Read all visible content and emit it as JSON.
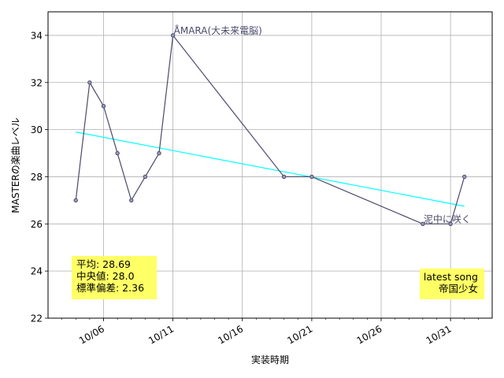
{
  "chart_data": {
    "type": "line",
    "xlabel": "実装時期",
    "ylabel": "MASTERの楽曲レベル",
    "ylim": [
      22,
      35
    ],
    "y_ticks": [
      22,
      24,
      26,
      28,
      30,
      32,
      34
    ],
    "x_range": [
      "2023-10-02",
      "2023-11-03"
    ],
    "x_ticks": [
      {
        "date": "2023-10-06",
        "label": "10/06"
      },
      {
        "date": "2023-10-11",
        "label": "10/11"
      },
      {
        "date": "2023-10-16",
        "label": "10/16"
      },
      {
        "date": "2023-10-21",
        "label": "10/21"
      },
      {
        "date": "2023-10-26",
        "label": "10/26"
      },
      {
        "date": "2023-10-31",
        "label": "10/31"
      }
    ],
    "grid": true,
    "series": [
      {
        "color": "#4a4a6a",
        "points": [
          {
            "date": "2023-10-04",
            "value": 27
          },
          {
            "date": "2023-10-05",
            "value": 32
          },
          {
            "date": "2023-10-06",
            "value": 31
          },
          {
            "date": "2023-10-07",
            "value": 29
          },
          {
            "date": "2023-10-08",
            "value": 27
          },
          {
            "date": "2023-10-09",
            "value": 28
          },
          {
            "date": "2023-10-10",
            "value": 29
          },
          {
            "date": "2023-10-11",
            "value": 34
          },
          {
            "date": "2023-10-19",
            "value": 28
          },
          {
            "date": "2023-10-21",
            "value": 28
          },
          {
            "date": "2023-10-29",
            "value": 26
          },
          {
            "date": "2023-10-31",
            "value": 26
          },
          {
            "date": "2023-11-01",
            "value": 28
          }
        ]
      }
    ],
    "trendline": {
      "color": "#00ffff",
      "start": {
        "date": "2023-10-04",
        "value": 29.9
      },
      "end": {
        "date": "2023-11-01",
        "value": 26.75
      }
    },
    "annotations": [
      {
        "text": "ÅMARA(大未来電脳)",
        "date": "2023-10-11",
        "value": 34
      },
      {
        "text": "泥中に咲く",
        "date": "2023-10-29",
        "value": 26
      }
    ],
    "stats_box": {
      "lines": [
        "平均: 28.69",
        "中央値: 28.0",
        "標準偏差:  2.36"
      ],
      "background": "#ffff66",
      "placement": "bottom-left"
    },
    "latest_box": {
      "lines": [
        "latest song",
        "帝国少女"
      ],
      "background": "#ffff66",
      "placement": "bottom-right"
    }
  }
}
